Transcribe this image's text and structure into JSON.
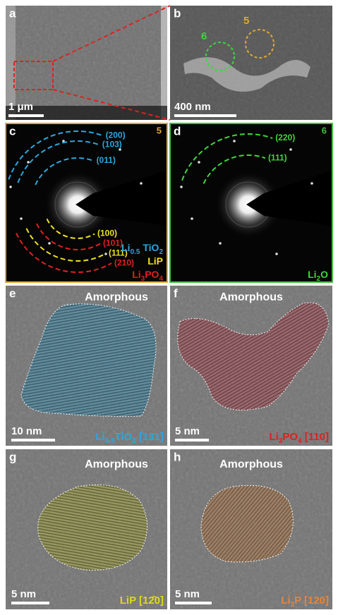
{
  "panels": [
    {
      "letter": "a",
      "scale_bar": "1 μm"
    },
    {
      "letter": "b",
      "scale_bar": "400 nm",
      "markers": [
        "5",
        "6"
      ]
    },
    {
      "letter": "c",
      "zone": "5",
      "rings": [
        "(200)",
        "(103)",
        "(011)",
        "(100)",
        "(101)",
        "(111)",
        "(210)"
      ],
      "legend": [
        [
          "Li",
          "0.5",
          " TiO",
          "2"
        ],
        [
          "LiP"
        ],
        [
          "Li",
          "3",
          "PO",
          "4"
        ]
      ]
    },
    {
      "letter": "d",
      "zone": "6",
      "rings": [
        "(220)",
        "(111)"
      ],
      "legend": [
        [
          "Li",
          "2",
          "O"
        ]
      ]
    },
    {
      "letter": "e",
      "note": "Amorphous",
      "scale_bar": "10 nm",
      "phase": [
        "Li",
        "0.5",
        "TiO",
        "2",
        " [131]"
      ]
    },
    {
      "letter": "f",
      "note": "Amorphous",
      "scale_bar": "5 nm",
      "phase": [
        "Li",
        "3",
        "PO",
        "4",
        " [110]"
      ]
    },
    {
      "letter": "g",
      "note": "Amorphous",
      "scale_bar": "5 nm",
      "phase": [
        "LiP [12̄0]"
      ]
    },
    {
      "letter": "h",
      "note": "Amorphous",
      "scale_bar": "5 nm",
      "phase": [
        "Li",
        "3",
        "P [120]"
      ]
    }
  ]
}
